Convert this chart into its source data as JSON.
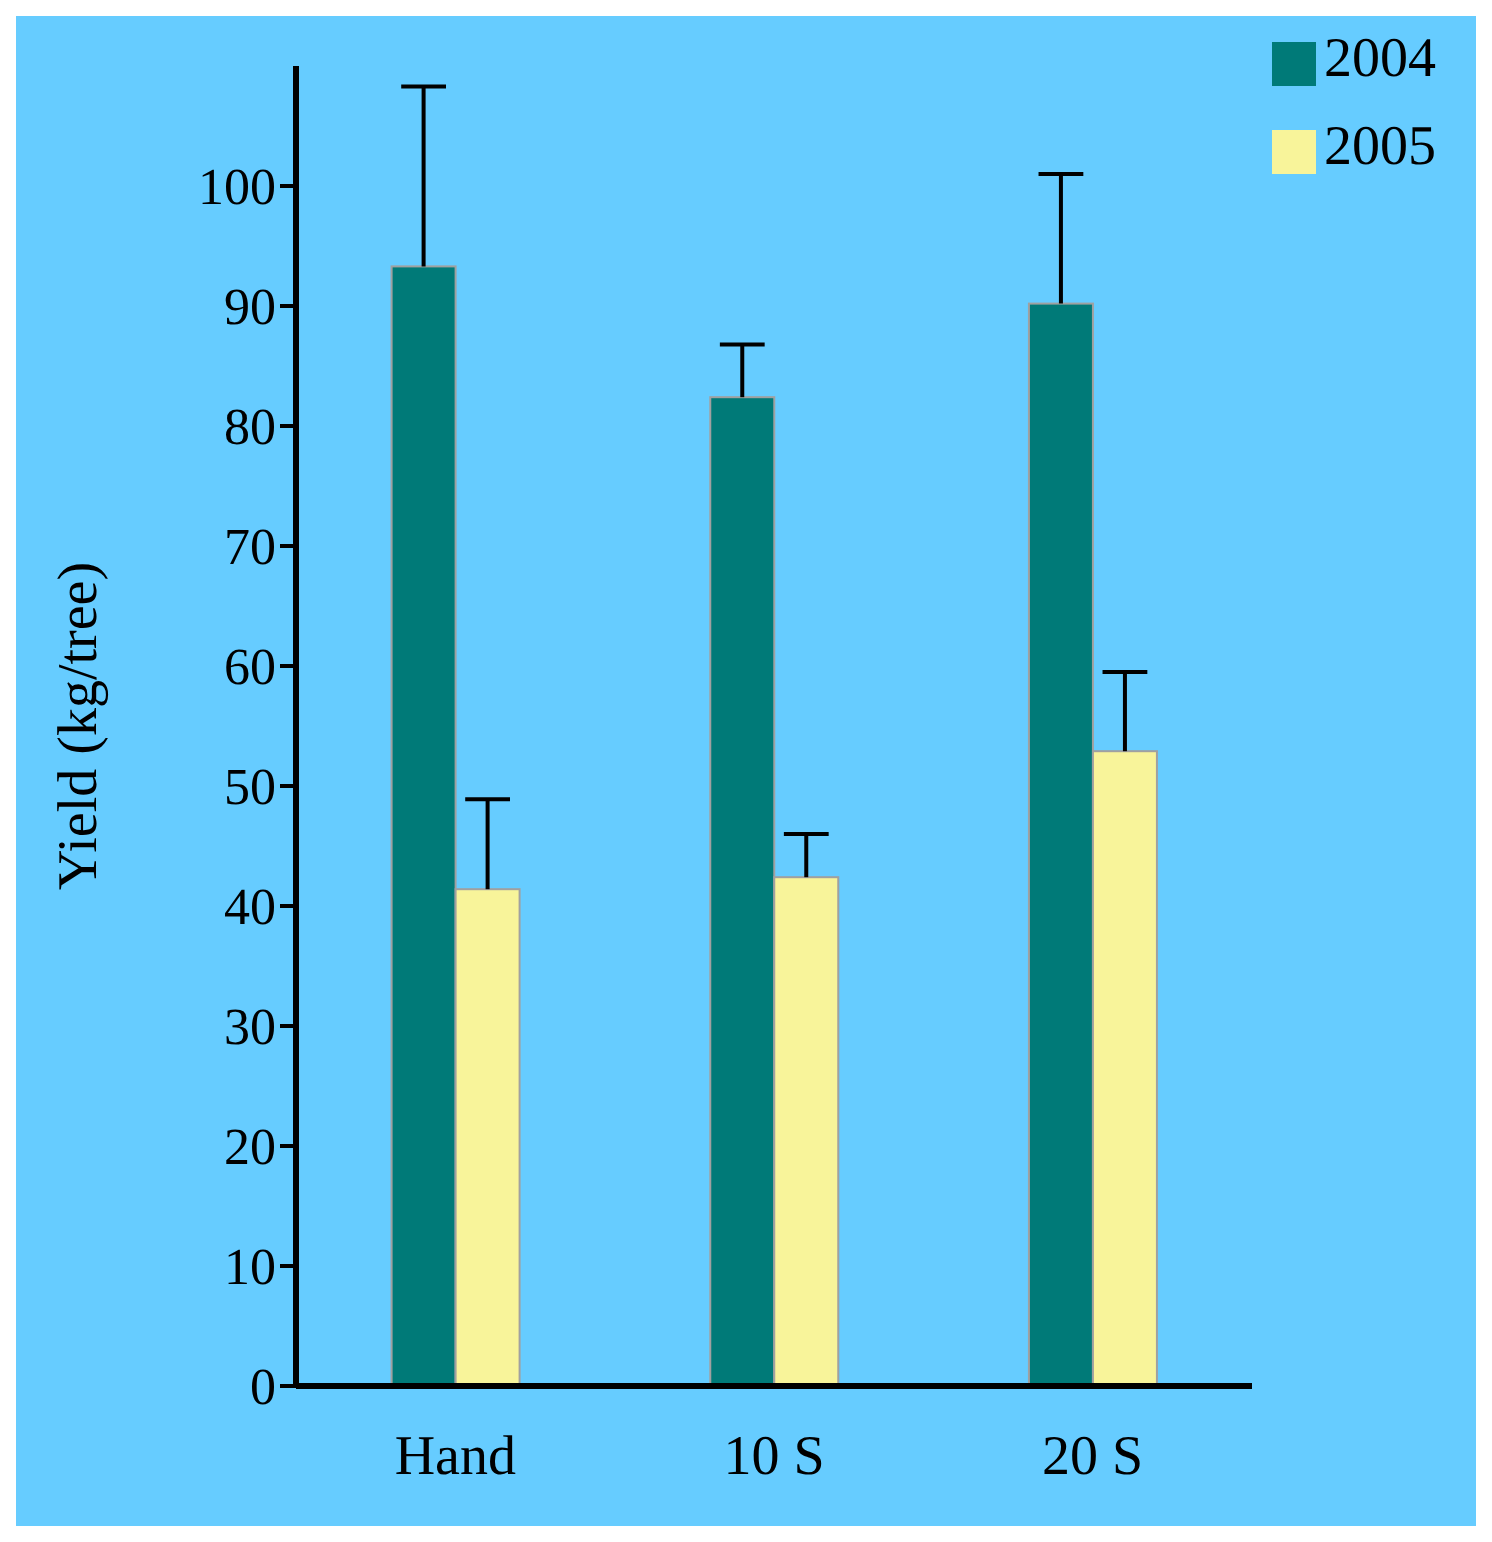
{
  "chart_data": {
    "type": "bar",
    "ylabel": "Yield (kg/tree)",
    "categories": [
      "Hand",
      "10 S",
      "20 S"
    ],
    "series": [
      {
        "name": "2004",
        "color": "#007a78",
        "values": [
          93.3,
          82.4,
          90.2
        ],
        "errors": [
          [
            93.3,
            108.3
          ],
          [
            82.4,
            86.8
          ],
          [
            90.2,
            101
          ]
        ]
      },
      {
        "name": "2005",
        "color": "#f8f49a",
        "values": [
          41.4,
          42.4,
          52.9
        ],
        "errors": [
          [
            41.4,
            48.9
          ],
          [
            42.4,
            46
          ],
          [
            52.9,
            59.5
          ]
        ]
      }
    ],
    "ylim": [
      0,
      110
    ],
    "yticks": [
      0,
      10,
      20,
      30,
      40,
      50,
      60,
      70,
      80,
      90,
      100
    ],
    "grid": false,
    "legend": "top right"
  }
}
